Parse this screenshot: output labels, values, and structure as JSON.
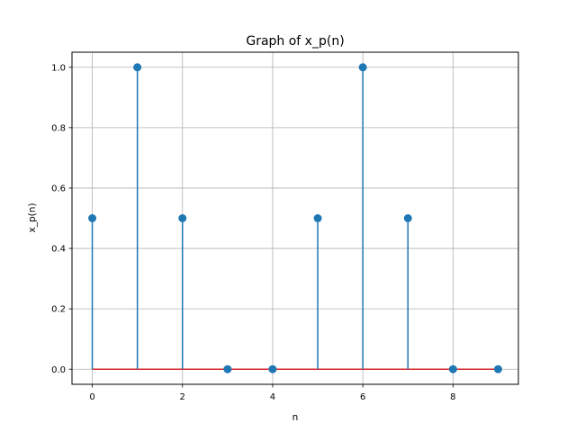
{
  "chart_data": {
    "type": "stem",
    "title": "Graph of x_p(n)",
    "xlabel": "n",
    "ylabel": "x_p(n)",
    "x": [
      0,
      1,
      2,
      3,
      4,
      5,
      6,
      7,
      8,
      9
    ],
    "y": [
      0.5,
      1.0,
      0.5,
      0.0,
      0.0,
      0.5,
      1.0,
      0.5,
      0.0,
      0.0
    ],
    "xlim": [
      -0.45,
      9.45
    ],
    "ylim": [
      -0.05,
      1.05
    ],
    "xticks": [
      0,
      2,
      4,
      6,
      8
    ],
    "xtick_labels": [
      "0",
      "2",
      "4",
      "6",
      "8"
    ],
    "yticks": [
      0.0,
      0.2,
      0.4,
      0.6,
      0.8,
      1.0
    ],
    "ytick_labels": [
      "0.0",
      "0.2",
      "0.4",
      "0.6",
      "0.8",
      "1.0"
    ],
    "grid": true,
    "colors": {
      "stem": "#1f77b4",
      "baseline": "#d62728",
      "grid": "#b0b0b0"
    }
  }
}
